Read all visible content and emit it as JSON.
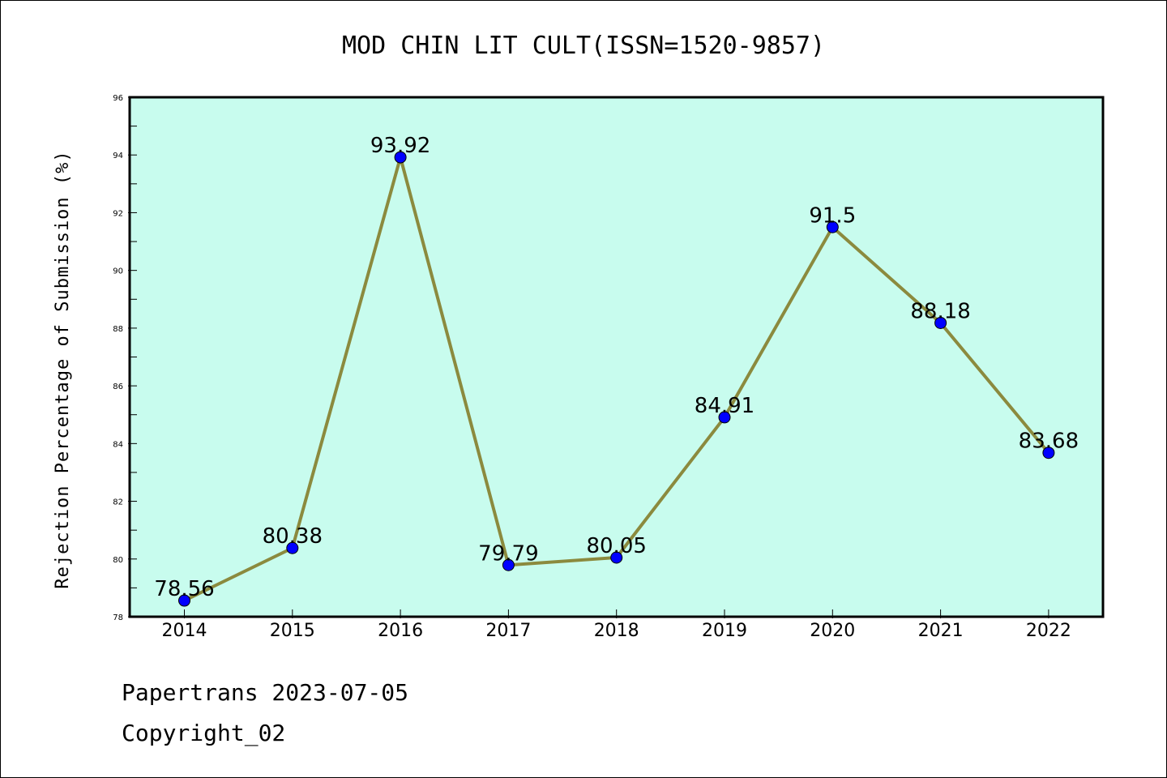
{
  "chart_data": {
    "type": "line",
    "title": "MOD CHIN LIT CULT(ISSN=1520-9857)",
    "ylabel": "Rejection Percentage of Submission (%)",
    "xlabel": "",
    "categories": [
      "2014",
      "2015",
      "2016",
      "2017",
      "2018",
      "2019",
      "2020",
      "2021",
      "2022"
    ],
    "series": [
      {
        "values": [
          78.56,
          80.38,
          93.92,
          79.79,
          80.05,
          84.91,
          91.5,
          88.18,
          83.68
        ],
        "labels": [
          "78.56",
          "80.38",
          "93.92",
          "79.79",
          "80.05",
          "84.91",
          "91.5",
          "88.18",
          "83.68"
        ]
      }
    ],
    "ylim": [
      78,
      96
    ],
    "yticks": [
      "78",
      "80",
      "82",
      "84",
      "86",
      "88",
      "90",
      "92",
      "94",
      "96"
    ],
    "grid": false,
    "colors": {
      "plot_background": "#c8fcee",
      "line": "#8b8a3e",
      "marker": "#0000ff"
    }
  },
  "footer": {
    "line1": "Papertrans 2023-07-05",
    "line2": "Copyright_02"
  }
}
